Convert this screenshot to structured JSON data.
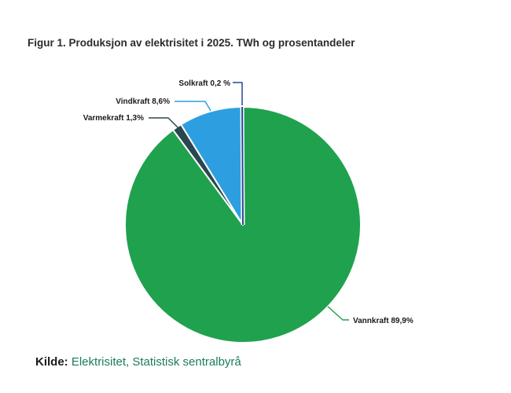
{
  "page": {
    "background": "#ffffff"
  },
  "header": {
    "title": "Figur 1. Produksjon av elektrisitet i 2025. TWh og prosentandeler"
  },
  "source": {
    "prefix": "Kilde:",
    "text": "Elektrisitet, Statistisk sentralbyrå",
    "link_color": "#1a7d5b"
  },
  "chart_data": {
    "type": "pie",
    "title": "Figur 1. Produksjon av elektrisitet i 2025. TWh og prosentandeler",
    "unit": "percent",
    "direction": "clockwise",
    "start_angle_deg": 0,
    "stroke_color": "#ffffff",
    "legend_position": "callout-labels",
    "slices": [
      {
        "name": "Vannkraft",
        "value": 89.9,
        "label": "Vannkraft 89,9%",
        "color": "#20a14e"
      },
      {
        "name": "Varmekraft",
        "value": 1.3,
        "label": "Varmekraft 1,3%",
        "color": "#2a474f"
      },
      {
        "name": "Vindkraft",
        "value": 8.6,
        "label": "Vindkraft 8,6%",
        "color": "#2d9fe0"
      },
      {
        "name": "Solkraft",
        "value": 0.2,
        "label": "Solkraft 0,2 %",
        "color": "#2b4590"
      }
    ]
  }
}
